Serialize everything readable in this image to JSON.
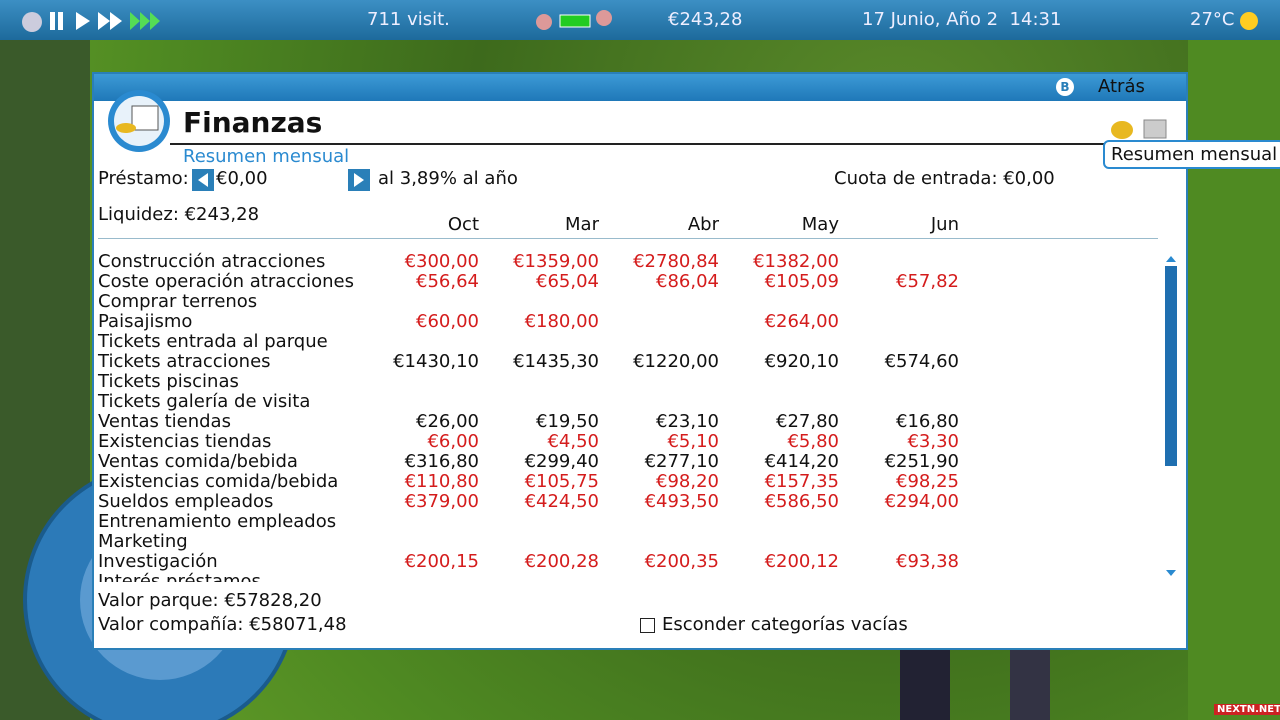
{
  "top_bar": {
    "visitors": "711 visit.",
    "money": "€243,28",
    "date": "17 Junio, Año 2  14:31",
    "temperature": "27°C"
  },
  "window": {
    "back_key": "B",
    "back": "Atrás",
    "title": "Finanzas",
    "subtitle": "Resumen mensual",
    "tooltip": "Resumen mensual"
  },
  "summary": {
    "loan_label": "Préstamo:",
    "loan_amount": "€0,00",
    "loan_rate": "al 3,89% al año",
    "entry_fee": "Cuota de entrada: €0,00",
    "cash": "Liquidez: €243,28"
  },
  "table": {
    "columns": [
      "Oct",
      "Mar",
      "Abr",
      "May",
      "Jun"
    ],
    "rows": [
      {
        "label": "Construcción atracciones",
        "color": "#d41c1c",
        "cells": [
          "€300,00",
          "€1359,00",
          "€2780,84",
          "€1382,00",
          null
        ]
      },
      {
        "label": "Coste operación atracciones",
        "color": "#d41c1c",
        "cells": [
          "€56,64",
          "€65,04",
          "€86,04",
          "€105,09",
          "€57,82"
        ]
      },
      {
        "label": "Comprar terrenos",
        "color": "#d41c1c",
        "cells": [
          null,
          null,
          null,
          null,
          null
        ]
      },
      {
        "label": "Paisajismo",
        "color": "#d41c1c",
        "cells": [
          "€60,00",
          "€180,00",
          null,
          "€264,00",
          null
        ]
      },
      {
        "label": "Tickets entrada al parque",
        "color": "#111111",
        "cells": [
          null,
          null,
          null,
          null,
          null
        ]
      },
      {
        "label": "Tickets atracciones",
        "color": "#111111",
        "cells": [
          "€1430,10",
          "€1435,30",
          "€1220,00",
          "€920,10",
          "€574,60"
        ]
      },
      {
        "label": "Tickets piscinas",
        "color": "#111111",
        "cells": [
          null,
          null,
          null,
          null,
          null
        ]
      },
      {
        "label": "Tickets galería de visita",
        "color": "#111111",
        "cells": [
          null,
          null,
          null,
          null,
          null
        ]
      },
      {
        "label": "Ventas tiendas",
        "color": "#111111",
        "cells": [
          "€26,00",
          "€19,50",
          "€23,10",
          "€27,80",
          "€16,80"
        ]
      },
      {
        "label": "Existencias tiendas",
        "color": "#d41c1c",
        "cells": [
          "€6,00",
          "€4,50",
          "€5,10",
          "€5,80",
          "€3,30"
        ]
      },
      {
        "label": "Ventas comida/bebida",
        "color": "#111111",
        "cells": [
          "€316,80",
          "€299,40",
          "€277,10",
          "€414,20",
          "€251,90"
        ]
      },
      {
        "label": "Existencias comida/bebida",
        "color": "#d41c1c",
        "cells": [
          "€110,80",
          "€105,75",
          "€98,20",
          "€157,35",
          "€98,25"
        ]
      },
      {
        "label": "Sueldos empleados",
        "color": "#d41c1c",
        "cells": [
          "€379,00",
          "€424,50",
          "€493,50",
          "€586,50",
          "€294,00"
        ]
      },
      {
        "label": "Entrenamiento empleados",
        "color": "#d41c1c",
        "cells": [
          null,
          null,
          null,
          null,
          null
        ]
      },
      {
        "label": "Marketing",
        "color": "#d41c1c",
        "cells": [
          null,
          null,
          null,
          null,
          null
        ]
      },
      {
        "label": "Investigación",
        "color": "#d41c1c",
        "cells": [
          "€200,15",
          "€200,28",
          "€200,35",
          "€200,12",
          "€93,38"
        ]
      },
      {
        "label": "Interés préstamos",
        "color": "#d41c1c",
        "cells": [
          null,
          null,
          null,
          null,
          null
        ]
      }
    ]
  },
  "footer": {
    "park_value": "Valor parque: €57828,20",
    "company_value": "Valor compañía: €58071,48",
    "hide_empty": "Esconder categorías vacías"
  },
  "watermark": "NEXTN.NET"
}
